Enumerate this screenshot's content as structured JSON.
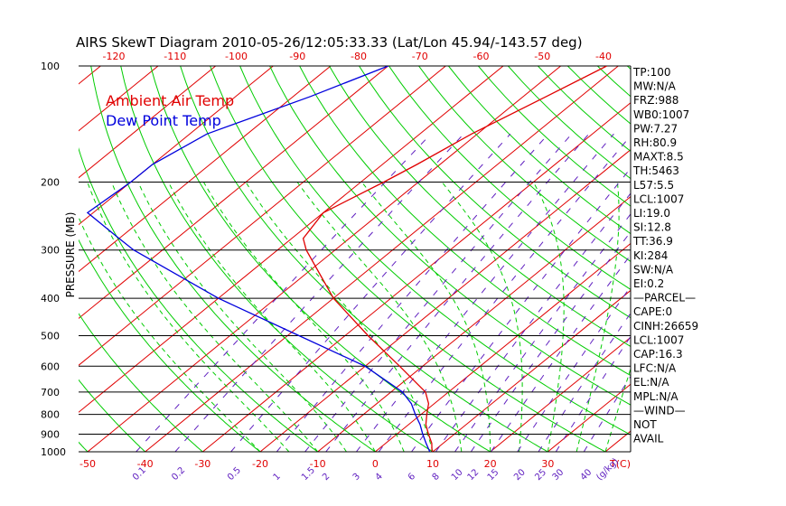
{
  "chart_data": {
    "type": "line",
    "title": "AIRS SkewT Diagram 2010-05-26/12:05:33.33 (Lat/Lon 45.94/-143.57 deg)",
    "ylabel": "PRESSURE (MB)",
    "y_scale": "log",
    "ylim": [
      1000,
      100
    ],
    "bottom_t_range": [
      -50,
      40
    ],
    "top_t_range": [
      -120,
      -40
    ],
    "bottom_axis_unit": "T(C)",
    "top_ticks": [
      "-120",
      "-110",
      "-100",
      "-90",
      "-80",
      "-70",
      "-60",
      "-50",
      "-40"
    ],
    "bottom_ticks": [
      "-50",
      "-40",
      "-30",
      "-20",
      "-10",
      "0",
      "10",
      "20",
      "30"
    ],
    "pressure_ticks": [
      "100",
      "200",
      "300",
      "400",
      "500",
      "600",
      "700",
      "800",
      "900",
      "1000"
    ],
    "mixing_ratio_labels": [
      "0.1",
      "0.2",
      "0.5",
      "1",
      "1.5",
      "2",
      "3",
      "4",
      "6",
      "8",
      "10",
      "12",
      "15",
      "20",
      "25",
      "30",
      "40"
    ],
    "mixing_ratio_unit": "(g/kg)",
    "legend": [
      "Ambient Air Temp",
      "Dew Point Temp"
    ],
    "legend_position": "top-left",
    "series": [
      {
        "name": "Ambient Air Temp",
        "color": "#e00000",
        "points": [
          {
            "p": 100,
            "t": -42
          },
          {
            "p": 120,
            "t": -46
          },
          {
            "p": 150,
            "t": -51
          },
          {
            "p": 180,
            "t": -54
          },
          {
            "p": 200,
            "t": -56
          },
          {
            "p": 240,
            "t": -60
          },
          {
            "p": 280,
            "t": -58
          },
          {
            "p": 300,
            "t": -55
          },
          {
            "p": 400,
            "t": -40
          },
          {
            "p": 500,
            "t": -26
          },
          {
            "p": 600,
            "t": -14
          },
          {
            "p": 700,
            "t": -4
          },
          {
            "p": 750,
            "t": -1
          },
          {
            "p": 800,
            "t": 1
          },
          {
            "p": 850,
            "t": 3
          },
          {
            "p": 900,
            "t": 5.5
          },
          {
            "p": 950,
            "t": 8
          },
          {
            "p": 990,
            "t": 9.5
          },
          {
            "p": 1000,
            "t": 10
          }
        ]
      },
      {
        "name": "Dew Point Temp",
        "color": "#0000dd",
        "points": [
          {
            "p": 100,
            "t": -80
          },
          {
            "p": 120,
            "t": -87
          },
          {
            "p": 150,
            "t": -97
          },
          {
            "p": 180,
            "t": -100
          },
          {
            "p": 200,
            "t": -100
          },
          {
            "p": 240,
            "t": -101
          },
          {
            "p": 280,
            "t": -90
          },
          {
            "p": 300,
            "t": -85
          },
          {
            "p": 400,
            "t": -60
          },
          {
            "p": 500,
            "t": -38
          },
          {
            "p": 600,
            "t": -20
          },
          {
            "p": 700,
            "t": -8
          },
          {
            "p": 750,
            "t": -4
          },
          {
            "p": 800,
            "t": -1
          },
          {
            "p": 850,
            "t": 2
          },
          {
            "p": 900,
            "t": 4.5
          },
          {
            "p": 950,
            "t": 7
          },
          {
            "p": 990,
            "t": 9
          },
          {
            "p": 1000,
            "t": 9.5
          }
        ]
      }
    ],
    "grid": true,
    "colors": {
      "isotherm": "#e00000",
      "dry_adiabat": "#00cc00",
      "moist_adiabat": "#00cc00",
      "mixing_ratio": "#6020c0",
      "isobar": "#000000"
    },
    "indices": [
      "TP:100",
      "MW:N/A",
      "FRZ:988",
      "WB0:1007",
      "PW:7.27",
      "RH:80.9",
      "MAXT:8.5",
      "TH:5463",
      "L57:5.5",
      "LCL:1007",
      "LI:19.0",
      "SI:12.8",
      "TT:36.9",
      "KI:284",
      "SW:N/A",
      "EI:0.2",
      "—PARCEL—",
      "CAPE:0",
      "CINH:26659",
      "LCL:1007",
      "CAP:16.3",
      "LFC:N/A",
      "EL:N/A",
      "MPL:N/A",
      "—WIND—",
      "NOT",
      "AVAIL"
    ]
  }
}
